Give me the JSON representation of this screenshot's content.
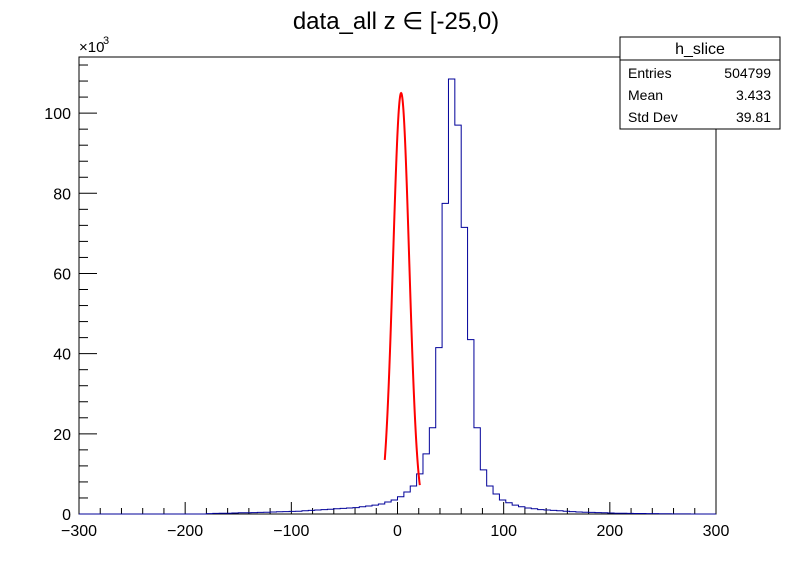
{
  "chart_data": {
    "type": "histogram",
    "title": "data_all z ∈ [-25,0)",
    "xlabel": "",
    "ylabel": "",
    "xlim": [
      -300,
      300
    ],
    "ylim": [
      0,
      114000
    ],
    "y_multiplier_label": "×10",
    "y_multiplier_exponent": "3",
    "x_ticks": [
      -300,
      -200,
      -100,
      0,
      100,
      200,
      300
    ],
    "x_tick_labels": [
      "−300",
      "−200",
      "−100",
      "0",
      "100",
      "200",
      "300"
    ],
    "y_ticks": [
      0,
      20000,
      40000,
      60000,
      80000,
      100000
    ],
    "y_tick_labels": [
      "0",
      "20",
      "40",
      "60",
      "80",
      "100"
    ],
    "bin_width": 6,
    "histogram": {
      "name": "h_slice",
      "color": "#000099",
      "bin_edges_start": -300,
      "counts": [
        0,
        0,
        0,
        0,
        0,
        0,
        0,
        0,
        0,
        0,
        0,
        0,
        0,
        0,
        0,
        0,
        0,
        0,
        0,
        0,
        100,
        150,
        200,
        200,
        250,
        300,
        300,
        350,
        400,
        450,
        500,
        550,
        600,
        650,
        700,
        800,
        900,
        1000,
        1100,
        1200,
        1300,
        1400,
        1500,
        1600,
        1800,
        2000,
        2200,
        2500,
        3000,
        3500,
        4300,
        5500,
        7000,
        10000,
        15000,
        21500,
        41500,
        77500,
        108500,
        97000,
        71500,
        43500,
        21500,
        11000,
        7000,
        5000,
        3500,
        2800,
        2200,
        1800,
        1500,
        1300,
        1100,
        1000,
        900,
        800,
        700,
        600,
        500,
        450,
        400,
        350,
        300,
        250,
        200,
        180,
        160,
        140,
        120,
        100,
        80,
        60,
        50,
        40,
        30,
        20,
        0,
        0,
        0,
        0
      ]
    },
    "fit": {
      "color": "#ff0000",
      "type": "gaussian",
      "amplitude": 105000,
      "mean": 3.4,
      "sigma": 7.6,
      "range": [
        -12,
        21
      ]
    },
    "stats_box": {
      "title": "h_slice",
      "rows": [
        {
          "label": "Entries",
          "value": "504799"
        },
        {
          "label": "Mean",
          "value": "3.433"
        },
        {
          "label": "Std Dev",
          "value": "39.81"
        }
      ]
    },
    "colors": {
      "histogram": "#000099",
      "fit": "#ff0000",
      "axis": "#000000"
    }
  }
}
